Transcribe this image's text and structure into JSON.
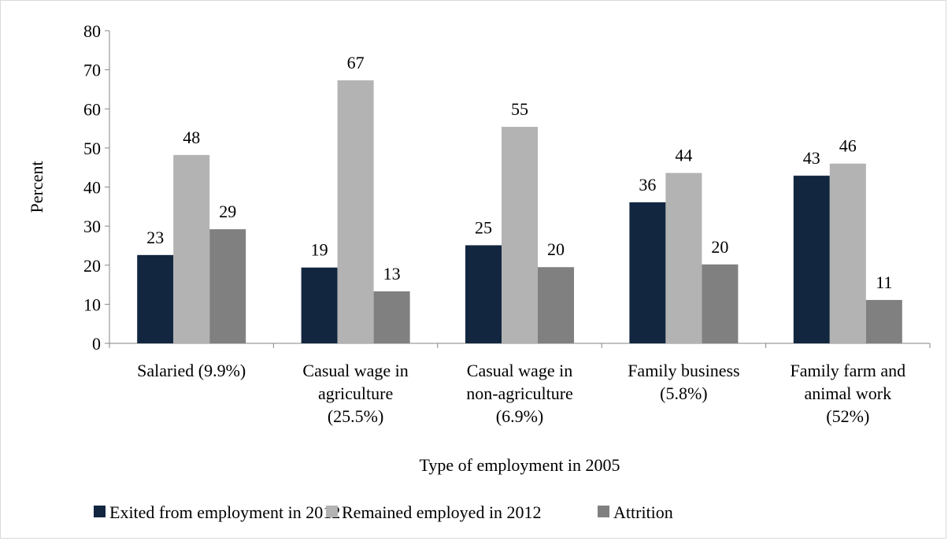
{
  "chart_data": {
    "type": "bar",
    "title": "",
    "xlabel": "Type of employment in 2005",
    "ylabel": "Percent",
    "ylim": [
      0,
      80
    ],
    "ytick_step": 10,
    "grid": false,
    "legend_position": "bottom",
    "categories": [
      [
        "Salaried (9.9%)"
      ],
      [
        "Casual wage in",
        "agriculture",
        "(25.5%)"
      ],
      [
        "Casual wage in",
        "non-agriculture",
        "(6.9%)"
      ],
      [
        "Family business",
        "(5.8%)"
      ],
      [
        "Family farm and",
        "animal work",
        "(52%)"
      ]
    ],
    "series": [
      {
        "name": "Exited from employment in 2012",
        "color": "#12263f",
        "values": [
          22.6,
          19.4,
          25.1,
          36.1,
          42.9
        ],
        "labels": [
          "23",
          "19",
          "25",
          "36",
          "43"
        ]
      },
      {
        "name": "Remained employed in 2012",
        "color": "#b3b3b3",
        "values": [
          48.2,
          67.3,
          55.4,
          43.6,
          46.0
        ],
        "labels": [
          "48",
          "67",
          "55",
          "44",
          "46"
        ]
      },
      {
        "name": "Attrition",
        "color": "#808080",
        "values": [
          29.2,
          13.3,
          19.5,
          20.2,
          11.1
        ],
        "labels": [
          "29",
          "13",
          "20",
          "20",
          "11"
        ]
      }
    ]
  }
}
